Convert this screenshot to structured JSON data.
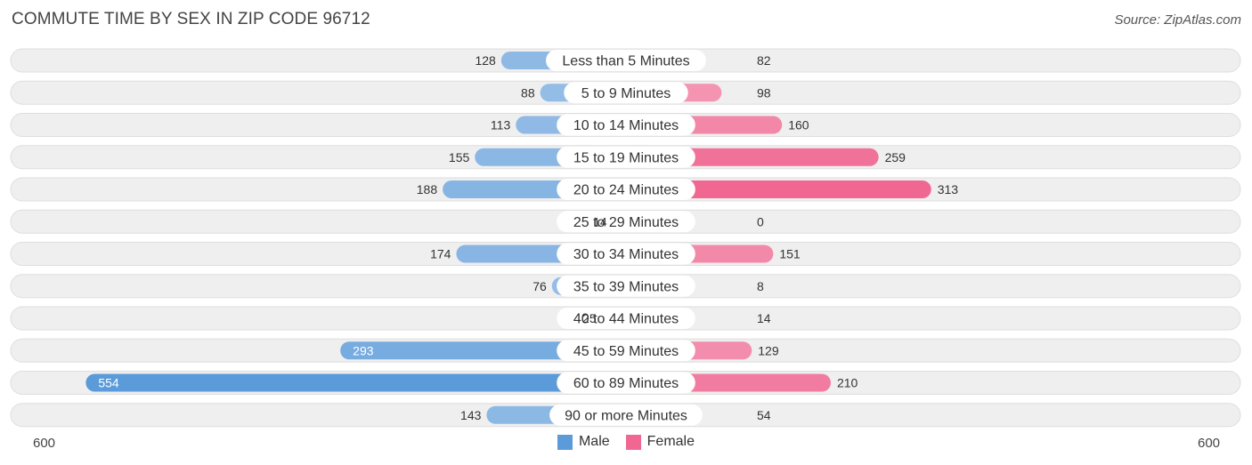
{
  "title": "COMMUTE TIME BY SEX IN ZIP CODE 96712",
  "source": "Source: ZipAtlas.com",
  "colors": {
    "male": "#5b9bd9",
    "male_light": "#9fc3e9",
    "female": "#f06892",
    "female_light": "#f6a8c0",
    "row_bg": "#efefef",
    "row_border": "#dedede"
  },
  "legend": {
    "male_label": "Male",
    "female_label": "Female"
  },
  "axis": {
    "left_label": "600",
    "right_label": "600"
  },
  "chart_data": {
    "type": "bar",
    "orientation": "horizontal-diverging",
    "categories": [
      "Less than 5 Minutes",
      "5 to 9 Minutes",
      "10 to 14 Minutes",
      "15 to 19 Minutes",
      "20 to 24 Minutes",
      "25 to 29 Minutes",
      "30 to 34 Minutes",
      "35 to 39 Minutes",
      "40 to 44 Minutes",
      "45 to 59 Minutes",
      "60 to 89 Minutes",
      "90 or more Minutes"
    ],
    "series": [
      {
        "name": "Male",
        "values": [
          128,
          88,
          113,
          155,
          188,
          14,
          174,
          76,
          25,
          293,
          554,
          143
        ]
      },
      {
        "name": "Female",
        "values": [
          82,
          98,
          160,
          259,
          313,
          0,
          151,
          8,
          14,
          129,
          210,
          54
        ]
      }
    ],
    "xlim": [
      -600,
      600
    ],
    "legend_position": "bottom-center"
  }
}
